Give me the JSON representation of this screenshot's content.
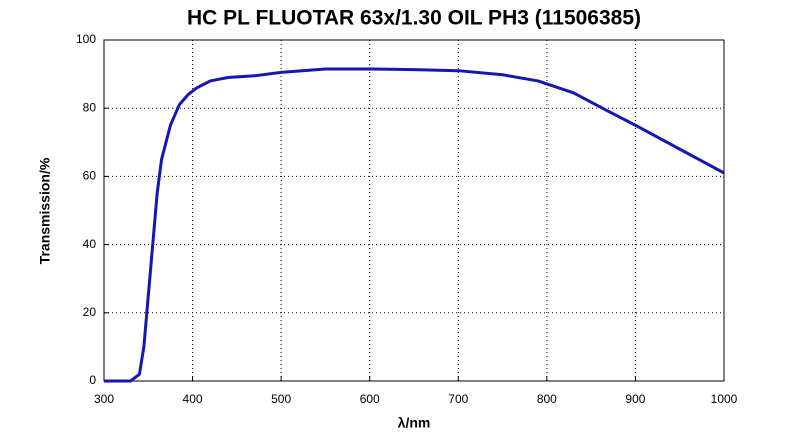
{
  "chart_data": {
    "type": "line",
    "title": "HC PL FLUOTAR 63x/1.30 OIL PH3 (11506385)",
    "x_label": "λ/nm",
    "y_label": "Transmission/%",
    "x": [
      300,
      330,
      340,
      345,
      350,
      355,
      360,
      365,
      375,
      385,
      395,
      405,
      420,
      440,
      470,
      500,
      550,
      600,
      650,
      700,
      750,
      790,
      830,
      870,
      900,
      950,
      1000
    ],
    "series": [
      {
        "name": "Transmission",
        "color": "#1616b4",
        "values": [
          0,
          0,
          2,
          10,
          25,
          40,
          55,
          65,
          75,
          81,
          84,
          86,
          88,
          89,
          89.5,
          90.5,
          91.5,
          91.5,
          91.3,
          91,
          89.8,
          88,
          84.5,
          79,
          75,
          68,
          61
        ]
      }
    ],
    "xlim": [
      300,
      1000
    ],
    "ylim": [
      0,
      100
    ],
    "xticks": [
      300,
      400,
      500,
      600,
      700,
      800,
      900,
      1000
    ],
    "yticks": [
      0,
      20,
      40,
      60,
      80,
      100
    ],
    "grid": true
  }
}
